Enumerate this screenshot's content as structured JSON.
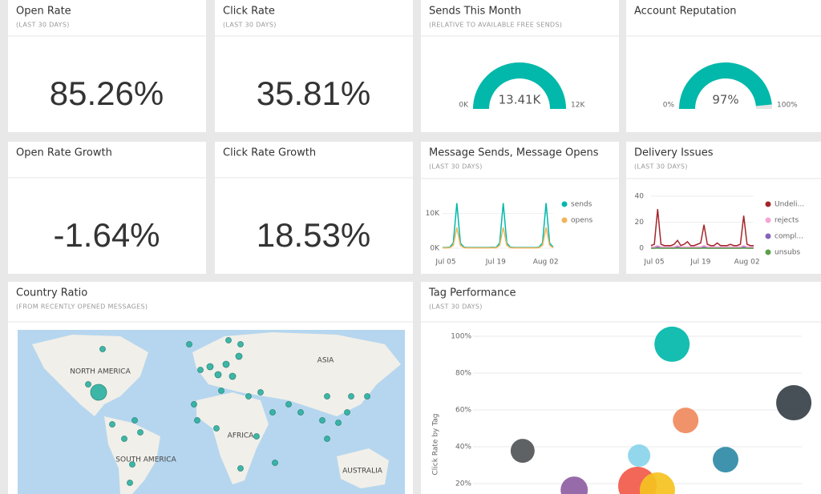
{
  "tiles": [
    {
      "title": "Open Rate",
      "subtitle": "(LAST 30 DAYS)",
      "value": "85.26%"
    },
    {
      "title": "Click Rate",
      "subtitle": "(LAST 30 DAYS)",
      "value": "35.81%"
    },
    {
      "title": "Open Rate Growth",
      "value": "-1.64%"
    },
    {
      "title": "Click Rate Growth",
      "value": "18.53%"
    }
  ],
  "gauges": [
    {
      "title": "Sends This Month",
      "subtitle": "(RELATIVE TO AVAILABLE FREE SENDS)",
      "value": 13410,
      "value_label": "13.41K",
      "min": 0,
      "min_label": "0K",
      "max": 12000,
      "max_label": "12K",
      "color": "#01b8aa"
    },
    {
      "title": "Account Reputation",
      "value": 97,
      "value_label": "97%",
      "min": 0,
      "min_label": "0%",
      "max": 100,
      "max_label": "100%",
      "color": "#01b8aa"
    }
  ],
  "line_charts": [
    {
      "type": "line",
      "title": "Message Sends, Message Opens",
      "subtitle": "(LAST 30 DAYS)",
      "categories": [
        "Jul 05",
        null,
        null,
        null,
        null,
        null,
        null,
        null,
        null,
        null,
        null,
        null,
        null,
        null,
        "Jul 19",
        null,
        null,
        null,
        null,
        null,
        null,
        null,
        null,
        null,
        null,
        null,
        null,
        null,
        "Aug 02",
        null,
        null,
        null
      ],
      "ylim": [
        0,
        15000
      ],
      "yticks": [
        {
          "value": 0,
          "label": "0K"
        },
        {
          "value": 10000,
          "label": "10K"
        }
      ],
      "series": [
        {
          "name": "sends",
          "color": "#01b8aa",
          "values": [
            200,
            200,
            300,
            1500,
            13000,
            1500,
            300,
            200,
            200,
            200,
            200,
            200,
            200,
            200,
            300,
            200,
            1500,
            13000,
            1500,
            300,
            200,
            200,
            200,
            200,
            200,
            200,
            200,
            300,
            1500,
            13000,
            1500,
            300
          ]
        },
        {
          "name": "opens",
          "color": "#f2b45a",
          "values": [
            100,
            100,
            150,
            800,
            6000,
            800,
            150,
            100,
            100,
            100,
            100,
            100,
            100,
            100,
            150,
            100,
            800,
            6000,
            800,
            150,
            100,
            100,
            100,
            100,
            100,
            100,
            100,
            150,
            800,
            6000,
            800,
            150
          ]
        }
      ]
    },
    {
      "type": "line",
      "title": "Delivery Issues",
      "subtitle": "(LAST 30 DAYS)",
      "categories": [
        "Jul 05",
        null,
        null,
        null,
        null,
        null,
        null,
        null,
        null,
        null,
        null,
        null,
        null,
        null,
        "Jul 19",
        null,
        null,
        null,
        null,
        null,
        null,
        null,
        null,
        null,
        null,
        null,
        null,
        null,
        "Aug 02",
        null,
        null,
        null
      ],
      "ylim": [
        0,
        40
      ],
      "yticks": [
        0,
        20,
        40
      ],
      "series": [
        {
          "name": "Undeli...",
          "color": "#a4262c",
          "values": [
            2,
            3,
            30,
            3,
            2,
            2,
            2,
            3,
            6,
            2,
            3,
            5,
            2,
            2,
            3,
            4,
            18,
            3,
            2,
            2,
            4,
            2,
            2,
            2,
            3,
            2,
            2,
            3,
            25,
            3,
            2,
            2
          ]
        },
        {
          "name": "rejects",
          "color": "#f4a6d7",
          "values": [
            1,
            1,
            2,
            1,
            1,
            1,
            1,
            1,
            2,
            1,
            1,
            1,
            1,
            1,
            1,
            1,
            2,
            1,
            1,
            1,
            1,
            1,
            1,
            1,
            1,
            1,
            1,
            1,
            2,
            1,
            1,
            1
          ]
        },
        {
          "name": "compl...",
          "color": "#8764b8",
          "values": [
            0,
            0,
            1,
            0,
            0,
            0,
            0,
            0,
            1,
            0,
            0,
            0,
            0,
            0,
            0,
            0,
            1,
            0,
            0,
            0,
            0,
            0,
            0,
            0,
            0,
            0,
            0,
            0,
            1,
            0,
            0,
            0
          ]
        },
        {
          "name": "unsubs",
          "color": "#5ea04a",
          "values": [
            0,
            0,
            0,
            0,
            0,
            0,
            0,
            0,
            0,
            0,
            0,
            0,
            0,
            0,
            0,
            0,
            0,
            0,
            0,
            0,
            0,
            0,
            0,
            0,
            0,
            0,
            0,
            0,
            0,
            0,
            0,
            0
          ]
        }
      ]
    }
  ],
  "map": {
    "title": "Country Ratio",
    "subtitle": "(FROM RECENTLY OPENED MESSAGES)",
    "labels": [
      "NORTH AMERICA",
      "ASIA",
      "AFRICA",
      "SOUTH AMERICA",
      "AUSTRALIA"
    ]
  },
  "scatter": {
    "type": "scatter",
    "title": "Tag Performance",
    "subtitle": "(LAST 30 DAYS)",
    "y_label": "Click Rate by Tag",
    "xlim": [
      0,
      100
    ],
    "ylim": [
      10,
      100
    ],
    "yticks": [
      {
        "value": 20,
        "label": "20%"
      },
      {
        "value": 40,
        "label": "40%"
      },
      {
        "value": 60,
        "label": "60%"
      },
      {
        "value": 80,
        "label": "80%"
      },
      {
        "value": 100,
        "label": "100%"
      }
    ],
    "x": [
      58.6,
      95.2,
      62.7,
      13.7,
      48.7,
      74.7,
      29.2,
      48.2,
      54.2
    ],
    "y": [
      95.7,
      63.9,
      54.3,
      37.8,
      35.2,
      33.0,
      16.5,
      18.7,
      16.5
    ],
    "sizes": [
      121,
      121,
      64,
      56,
      49,
      64,
      72,
      144,
      121
    ],
    "colors": [
      "#01b8aa",
      "#374049",
      "#f08a5d",
      "#505558",
      "#8ad4eb",
      "#2f8aa6",
      "#8e5ea2",
      "#f25a4a",
      "#f5c220"
    ]
  }
}
